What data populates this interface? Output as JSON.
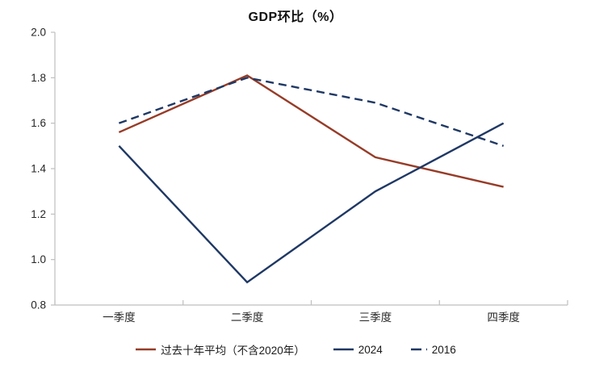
{
  "chart_data": {
    "type": "line",
    "title": "GDP环比（%）",
    "categories": [
      "一季度",
      "二季度",
      "三季度",
      "四季度"
    ],
    "series": [
      {
        "name": "过去十年平均（不含2020年）",
        "values": [
          1.56,
          1.81,
          1.45,
          1.32
        ],
        "color": "#963C28",
        "style": "solid"
      },
      {
        "name": "2024",
        "values": [
          1.5,
          0.9,
          1.3,
          1.6
        ],
        "color": "#1F3864",
        "style": "solid"
      },
      {
        "name": "2016",
        "values": [
          1.6,
          1.8,
          1.69,
          1.5
        ],
        "color": "#1F3864",
        "style": "dashed"
      }
    ],
    "xlabel": "",
    "ylabel": "",
    "ylim": [
      0.8,
      2.0
    ],
    "ytick_step": 0.2,
    "ytick_labels": [
      "2.0",
      "1.8",
      "1.6",
      "1.4",
      "1.2",
      "1.0",
      "0.8"
    ],
    "grid": false,
    "legend_position": "bottom",
    "axis_color": "#BFBFBF",
    "tick_label_color": "#262626"
  }
}
